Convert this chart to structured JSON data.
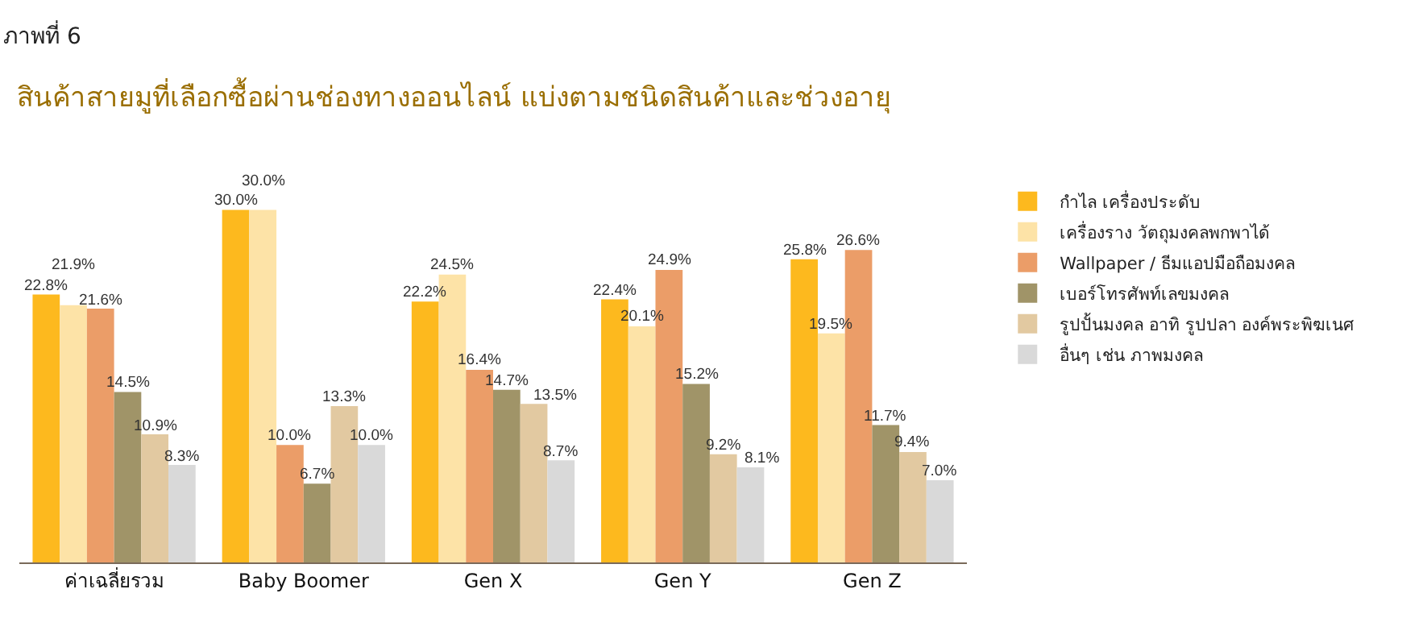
{
  "chart_data": {
    "type": "bar",
    "title": "สินค้าสายมูที่เลือกซื้อผ่านช่องทางออนไลน์ แบ่งตามชนิดสินค้าและช่วงอายุ",
    "annotations": [
      "ภาพที่ 6"
    ],
    "categories": [
      "ค่าเฉลี่ยรวม",
      "Baby Boomer",
      "Gen X",
      "Gen Y",
      "Gen Z"
    ],
    "series": [
      {
        "name": "กำไล เครื่องประดับ",
        "color": "#fdb91e",
        "values": [
          22.8,
          30.0,
          22.2,
          22.4,
          25.8
        ],
        "value_labels": [
          "22.8%",
          "30.0%",
          "22.2%",
          "22.4%",
          "25.8%"
        ]
      },
      {
        "name": "เครื่องราง วัตถุมงคลพกพาได้",
        "color": "#fde3a7",
        "values": [
          21.9,
          30.0,
          24.5,
          20.1,
          19.5
        ],
        "value_labels": [
          "21.9%",
          "30.0%",
          "24.5%",
          "20.1%",
          "19.5%"
        ]
      },
      {
        "name": "Wallpaper / ธีมแอปมือถือมงคล",
        "color": "#eb9d68",
        "values": [
          21.6,
          10.0,
          16.4,
          24.9,
          26.6
        ],
        "value_labels": [
          "21.6%",
          "10.0%",
          "16.4%",
          "24.9%",
          "26.6%"
        ]
      },
      {
        "name": "เบอร์โทรศัพท์เลขมงคล",
        "color": "#a09468",
        "values": [
          14.5,
          6.7,
          14.7,
          15.2,
          11.7
        ],
        "value_labels": [
          "14.5%",
          "6.7%",
          "14.7%",
          "15.2%",
          "11.7%"
        ]
      },
      {
        "name": "รูปปั้นมงคล อาทิ รูปปลา องค์พระพิฆเนศ",
        "color": "#e2c9a1",
        "values": [
          10.9,
          13.3,
          13.5,
          9.2,
          9.4
        ],
        "value_labels": [
          "10.9%",
          "13.3%",
          "13.5%",
          "9.2%",
          "9.4%"
        ]
      },
      {
        "name": "อื่นๆ เช่น ภาพมงคล",
        "color": "#d9d9d9",
        "values": [
          8.3,
          10.0,
          8.7,
          8.1,
          7.0
        ],
        "value_labels": [
          "8.3%",
          "10.0%",
          "8.7%",
          "8.1%",
          "7.0%"
        ]
      }
    ],
    "legend": "right",
    "grid": false
  }
}
